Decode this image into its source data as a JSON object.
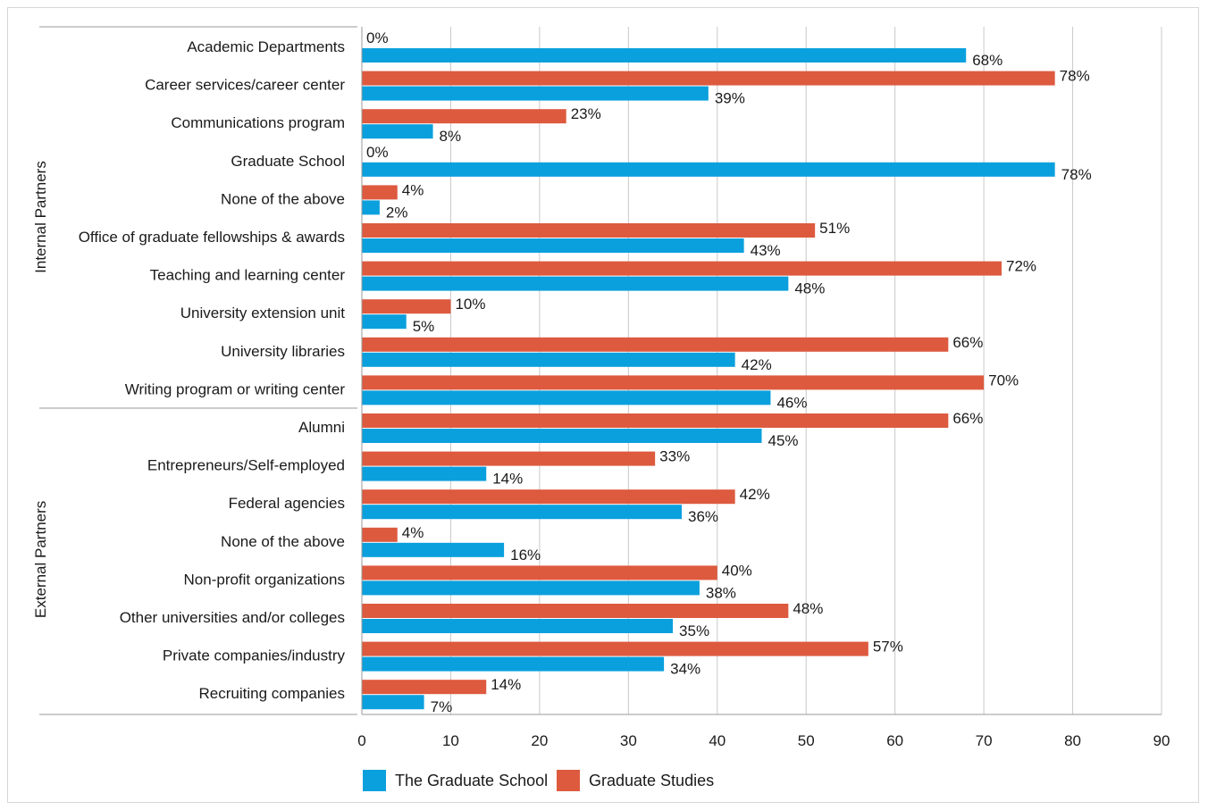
{
  "chart_data": {
    "type": "bar",
    "orientation": "horizontal",
    "xlim": [
      0,
      90
    ],
    "x_ticks": [
      0,
      10,
      20,
      30,
      40,
      50,
      60,
      70,
      80,
      90
    ],
    "grid": true,
    "legend_position": "bottom-left",
    "value_suffix": "%",
    "groups": [
      {
        "label": "Internal Partners",
        "categories": [
          "Academic Departments",
          "Career services/career center",
          "Communications program",
          "Graduate School",
          "None of the above",
          "Office of graduate fellowships & awards",
          "Teaching and learning center",
          "University extension unit",
          "University libraries",
          "Writing program or writing center"
        ]
      },
      {
        "label": "External Partners",
        "categories": [
          "Alumni",
          "Entrepreneurs/Self-employed",
          "Federal agencies",
          "None of the above",
          "Non-profit organizations",
          "Other universities and/or colleges",
          "Private companies/industry",
          "Recruiting companies"
        ]
      }
    ],
    "categories": [
      "Academic Departments",
      "Career services/career center",
      "Communications program",
      "Graduate School",
      "None of the above",
      "Office of graduate fellowships & awards",
      "Teaching and learning center",
      "University extension unit",
      "University libraries",
      "Writing program or writing center",
      "Alumni",
      "Entrepreneurs/Self-employed",
      "Federal agencies",
      "None of the above",
      "Non-profit organizations",
      "Other universities and/or colleges",
      "Private companies/industry",
      "Recruiting companies"
    ],
    "series": [
      {
        "name": "Graduate Studies",
        "color": "#dd5a3f",
        "values": [
          0,
          78,
          23,
          0,
          4,
          51,
          72,
          10,
          66,
          70,
          66,
          33,
          42,
          4,
          40,
          48,
          57,
          14
        ]
      },
      {
        "name": "The Graduate School",
        "color": "#0aa0dd",
        "values": [
          68,
          39,
          8,
          78,
          2,
          43,
          48,
          5,
          42,
          46,
          45,
          14,
          36,
          16,
          38,
          35,
          34,
          7
        ]
      }
    ],
    "legend": [
      "The Graduate School",
      "Graduate Studies"
    ]
  }
}
